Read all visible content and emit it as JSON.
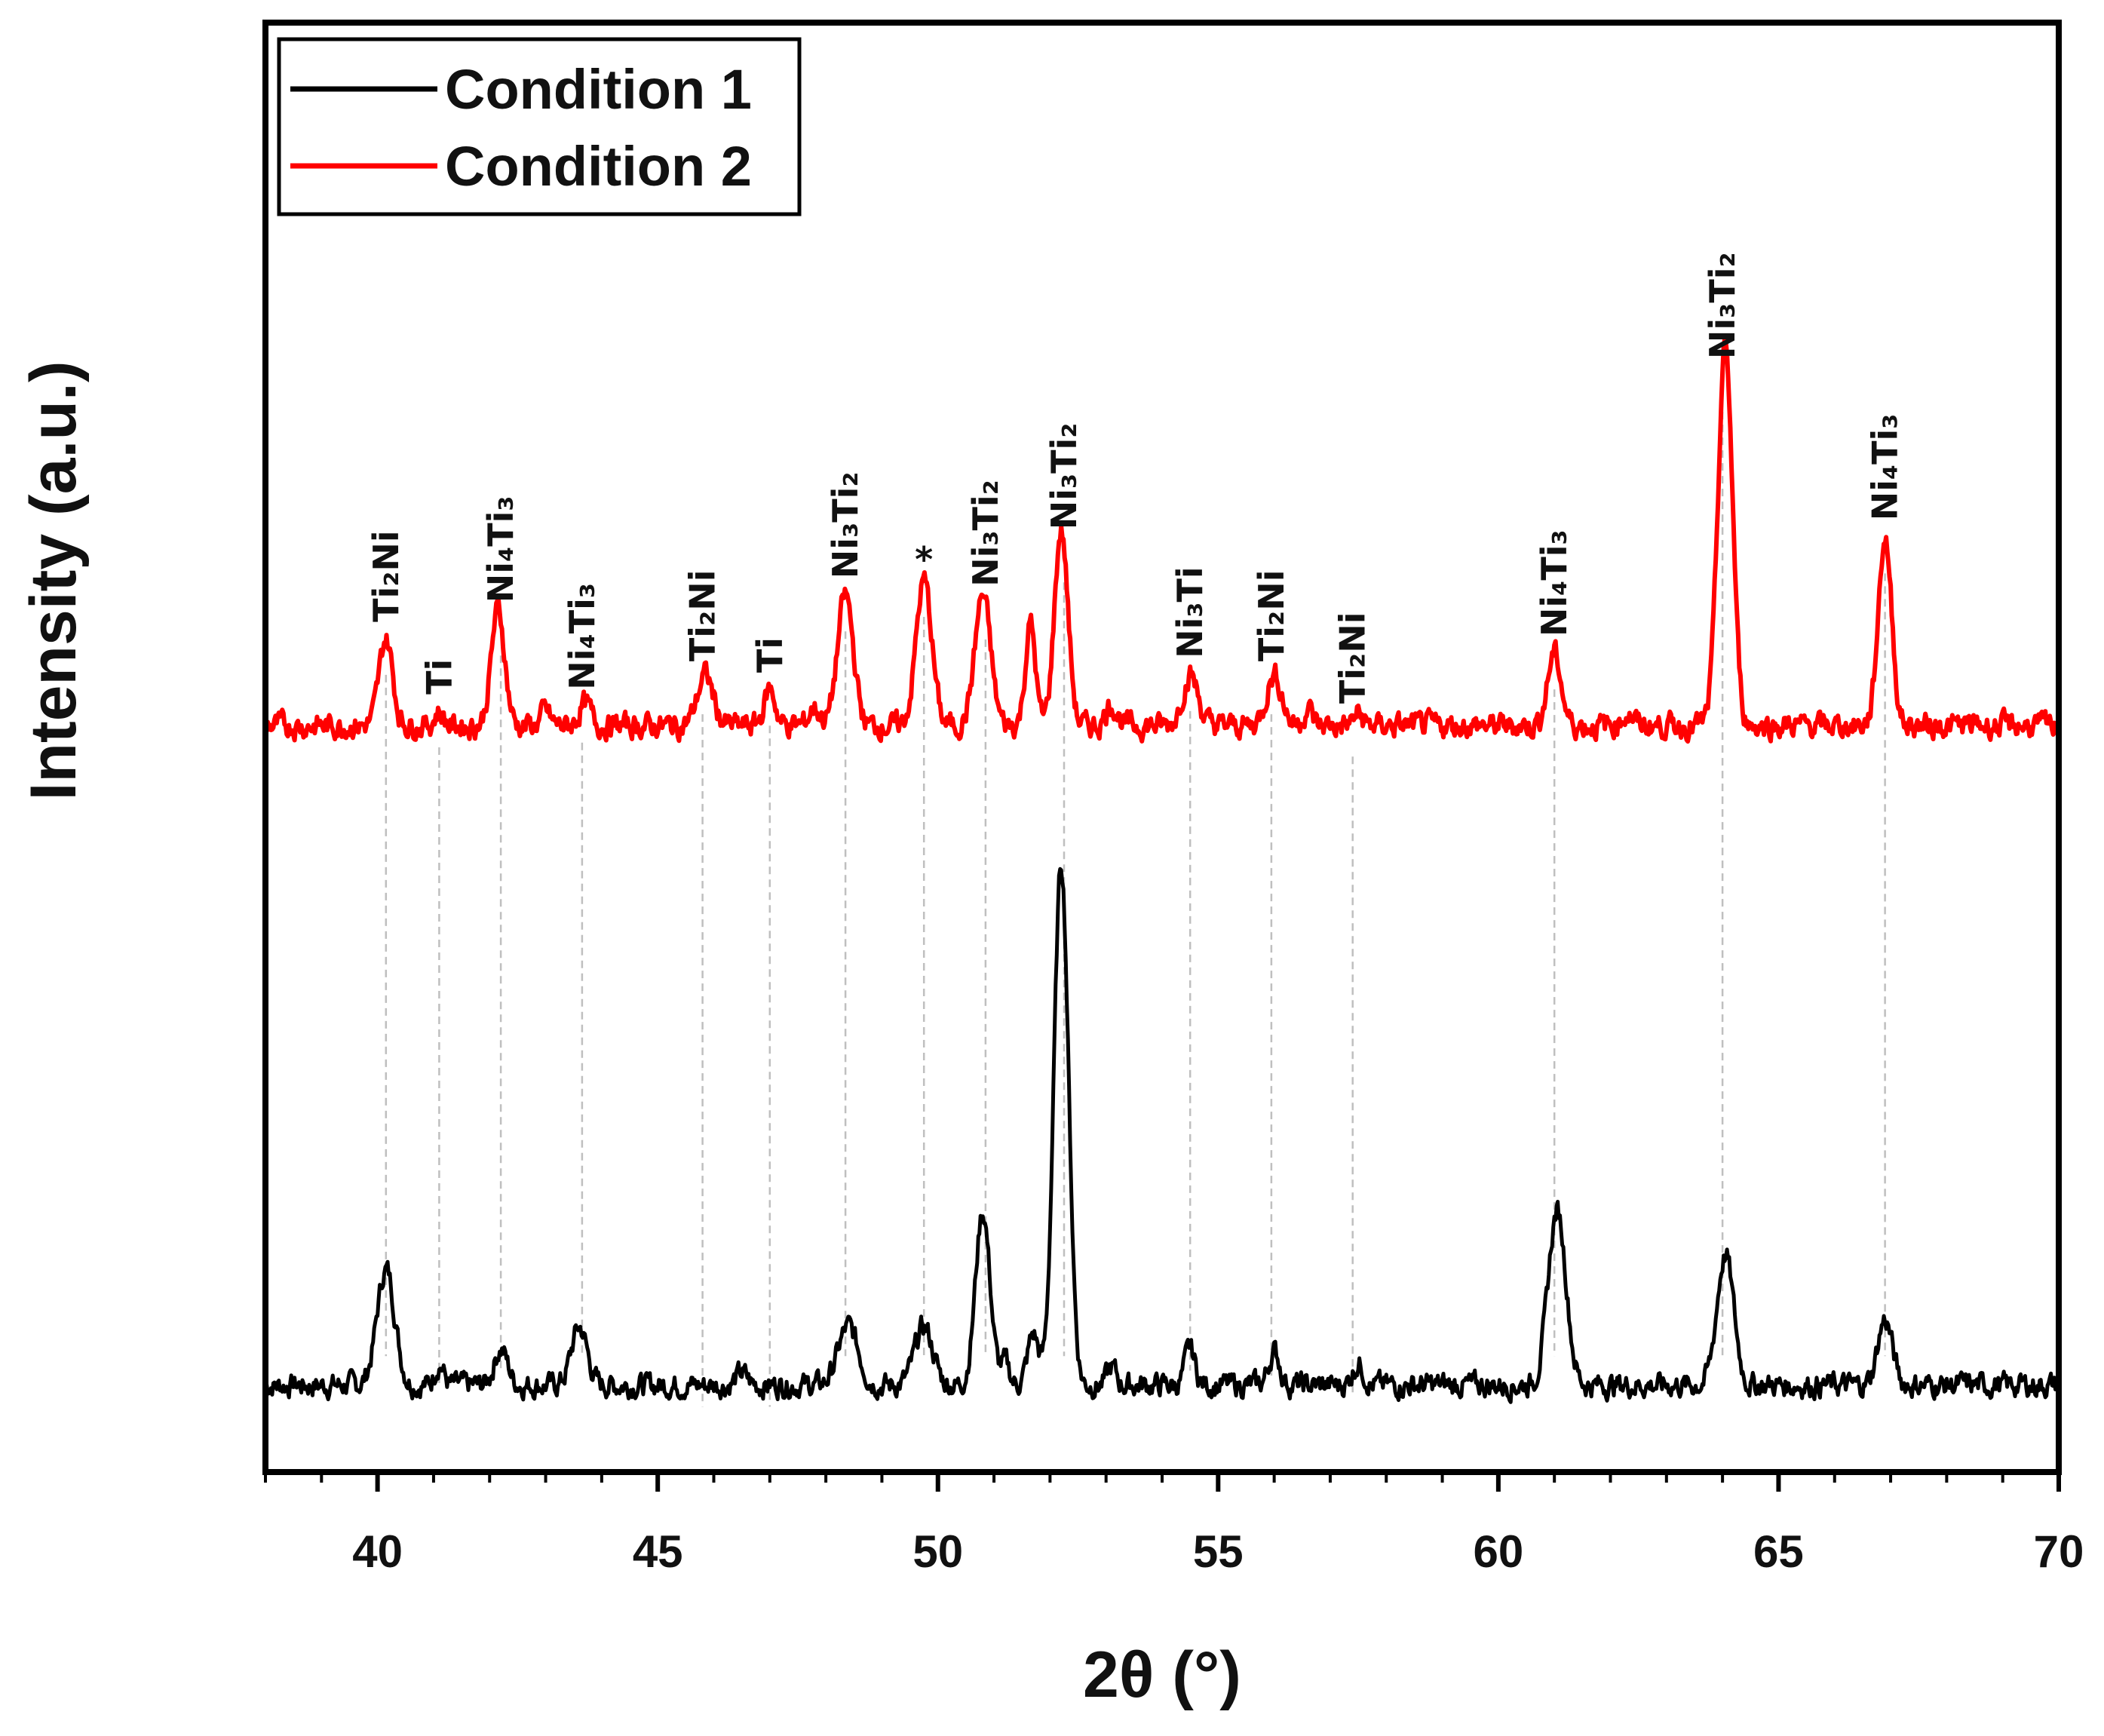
{
  "chart_data": {
    "type": "line",
    "title": "",
    "xlabel": "2θ (°)",
    "ylabel": "Intensity (a.u.)",
    "xlim": [
      38,
      70
    ],
    "ylim": [
      0,
      100
    ],
    "x_ticks": [
      "40",
      "45",
      "50",
      "55",
      "60",
      "65",
      "70"
    ],
    "legend_position": "top-left",
    "y_ticks_shown": false,
    "grid": false,
    "series": [
      {
        "name": "Condition 1",
        "color": "#000000",
        "baseline": 6,
        "peaks": [
          [
            40.15,
            8,
            0.16
          ],
          [
            41.1,
            1.5,
            0.08
          ],
          [
            42.2,
            2.5,
            0.12
          ],
          [
            43.6,
            4,
            0.14
          ],
          [
            46.5,
            0.8,
            0.1
          ],
          [
            48.4,
            4,
            0.18
          ],
          [
            49.75,
            4,
            0.16
          ],
          [
            50.8,
            12,
            0.13
          ],
          [
            51.2,
            1.5,
            0.08
          ],
          [
            51.7,
            3.5,
            0.1
          ],
          [
            52.2,
            36,
            0.13
          ],
          [
            53.1,
            1.2,
            0.08
          ],
          [
            54.5,
            2.5,
            0.09
          ],
          [
            56.0,
            2.3,
            0.1
          ],
          [
            57.5,
            1.5,
            0.1
          ],
          [
            61.05,
            12,
            0.16
          ],
          [
            64.05,
            9,
            0.15
          ],
          [
            66.9,
            4.5,
            0.13
          ]
        ]
      },
      {
        "name": "Condition 2",
        "color": "#ff0000",
        "baseline": 51.5,
        "peaks": [
          [
            40.15,
            6,
            0.12
          ],
          [
            41.1,
            1,
            0.08
          ],
          [
            42.15,
            8,
            0.12
          ],
          [
            43.0,
            1,
            0.08
          ],
          [
            43.7,
            1.5,
            0.1
          ],
          [
            45.85,
            3.5,
            0.14
          ],
          [
            47.0,
            2.5,
            0.1
          ],
          [
            47.8,
            1.2,
            0.1
          ],
          [
            48.35,
            9,
            0.14
          ],
          [
            49.75,
            10,
            0.14
          ],
          [
            50.8,
            9,
            0.14
          ],
          [
            51.65,
            7,
            0.09
          ],
          [
            52.2,
            13.5,
            0.12
          ],
          [
            53.1,
            1.5,
            0.1
          ],
          [
            54.5,
            3.5,
            0.14
          ],
          [
            56.0,
            3.5,
            0.14
          ],
          [
            56.6,
            1.2,
            0.08
          ],
          [
            57.5,
            0.8,
            0.08
          ],
          [
            61.0,
            5,
            0.12
          ],
          [
            62.3,
            0.8,
            0.1
          ],
          [
            64.05,
            26,
            0.13
          ],
          [
            66.9,
            13,
            0.12
          ]
        ]
      }
    ],
    "peak_markers": [
      {
        "x": 40.15,
        "label": "Ti₂Ni"
      },
      {
        "x": 41.1,
        "label": "Ti"
      },
      {
        "x": 42.2,
        "label": "Ni₄Ti₃"
      },
      {
        "x": 43.65,
        "label": "Ni₄Ti₃"
      },
      {
        "x": 45.8,
        "label": "Ti₂Ni"
      },
      {
        "x": 47.0,
        "label": "Ti"
      },
      {
        "x": 48.35,
        "label": "Ni₃Ti₂"
      },
      {
        "x": 49.75,
        "label": "*"
      },
      {
        "x": 50.85,
        "label": "Ni₃Ti₂"
      },
      {
        "x": 52.25,
        "label": "Ni₃Ti₂"
      },
      {
        "x": 54.5,
        "label": "Ni₃Ti"
      },
      {
        "x": 55.95,
        "label": "Ti₂Ni"
      },
      {
        "x": 57.4,
        "label": "Ti₂Ni"
      },
      {
        "x": 61.0,
        "label": "Ni₄Ti₃"
      },
      {
        "x": 64.0,
        "label": "Ni₃Ti₂"
      },
      {
        "x": 66.9,
        "label": "Ni₄Ti₃"
      }
    ]
  }
}
